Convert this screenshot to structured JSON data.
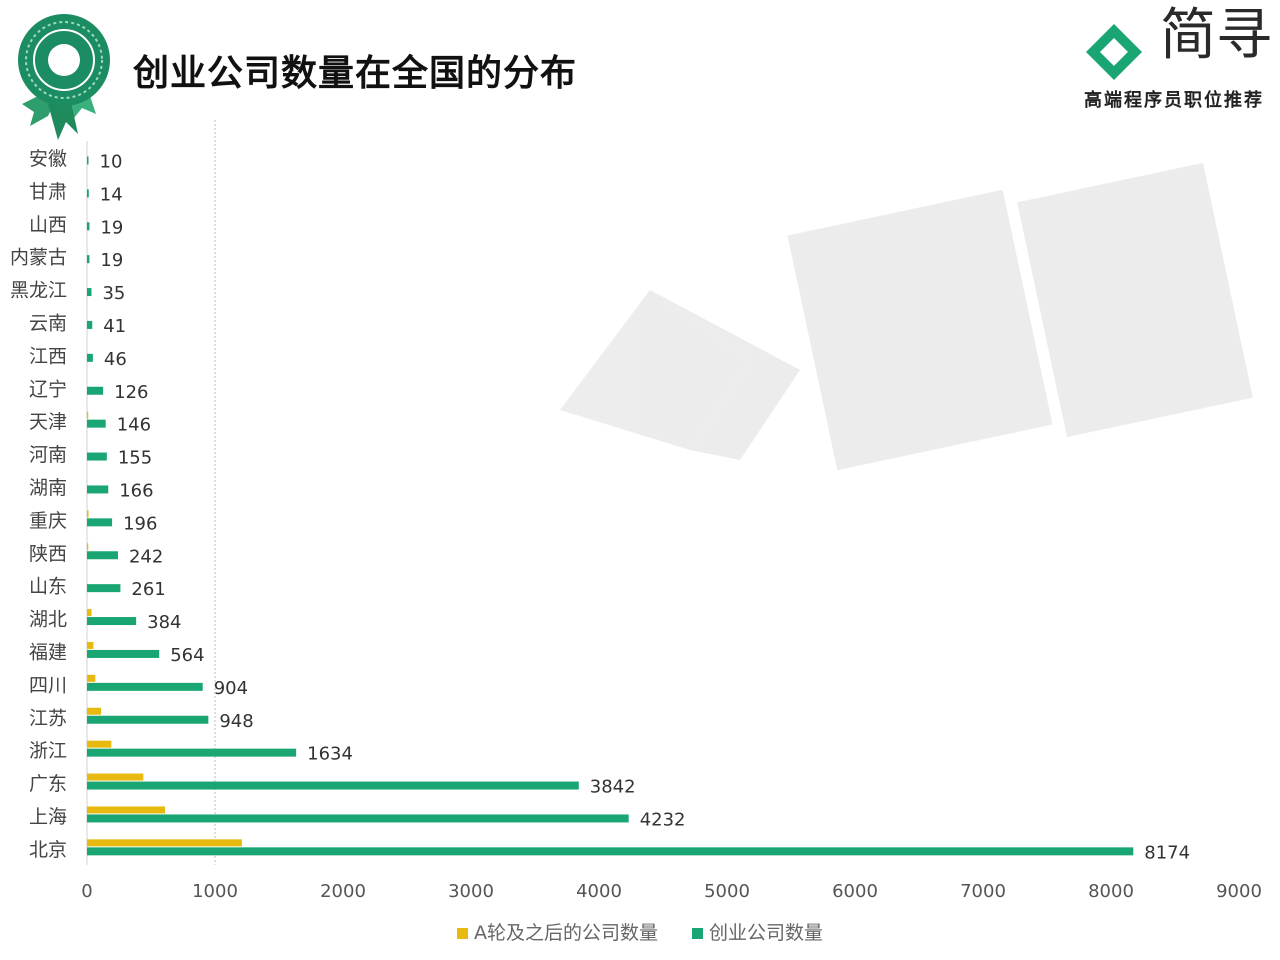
{
  "page_title": "创业公司数量在全国的分布",
  "logo": {
    "text": "简寻",
    "slogan": "高端程序员职位推荐"
  },
  "colors": {
    "accent": "#e8b90f",
    "primary": "#1aa672",
    "badge": "#1c8c62"
  },
  "chart_data": {
    "type": "bar",
    "orientation": "horizontal",
    "title": "创业公司数量在全国的分布",
    "categories": [
      "安徽",
      "甘肃",
      "山西",
      "内蒙古",
      "黑龙江",
      "云南",
      "江西",
      "辽宁",
      "天津",
      "河南",
      "湖南",
      "重庆",
      "陕西",
      "山东",
      "湖北",
      "福建",
      "四川",
      "江苏",
      "浙江",
      "广东",
      "上海",
      "北京"
    ],
    "series": [
      {
        "name": "A轮及之后的公司数量",
        "color": "#e8b90f",
        "values": [
          0,
          0,
          0,
          0,
          0,
          0,
          0,
          0,
          10,
          0,
          0,
          12,
          10,
          0,
          35,
          50,
          65,
          110,
          190,
          440,
          610,
          1210
        ]
      },
      {
        "name": "创业公司数量",
        "color": "#1aa672",
        "values": [
          10,
          14,
          19,
          19,
          35,
          41,
          46,
          126,
          146,
          155,
          166,
          196,
          242,
          261,
          384,
          564,
          904,
          948,
          1634,
          3842,
          4232,
          8174
        ]
      }
    ],
    "data_labels": [
      "10",
      "14",
      "19",
      "19",
      "35",
      "41",
      "46",
      "126",
      "146",
      "155",
      "166",
      "196",
      "242",
      "261",
      "384",
      "564",
      "904",
      "948",
      "1634",
      "3842",
      "4232",
      "8174"
    ],
    "xlim": [
      0,
      9000
    ],
    "x_ticks": [
      0,
      1000,
      2000,
      3000,
      4000,
      5000,
      6000,
      7000,
      8000,
      9000
    ],
    "x_tick_labels": [
      "0",
      "1000",
      "2000",
      "3000",
      "4000",
      "5000",
      "6000",
      "7000",
      "8000",
      "9000"
    ],
    "reference_line": 1000,
    "legend": {
      "position": "bottom"
    }
  }
}
